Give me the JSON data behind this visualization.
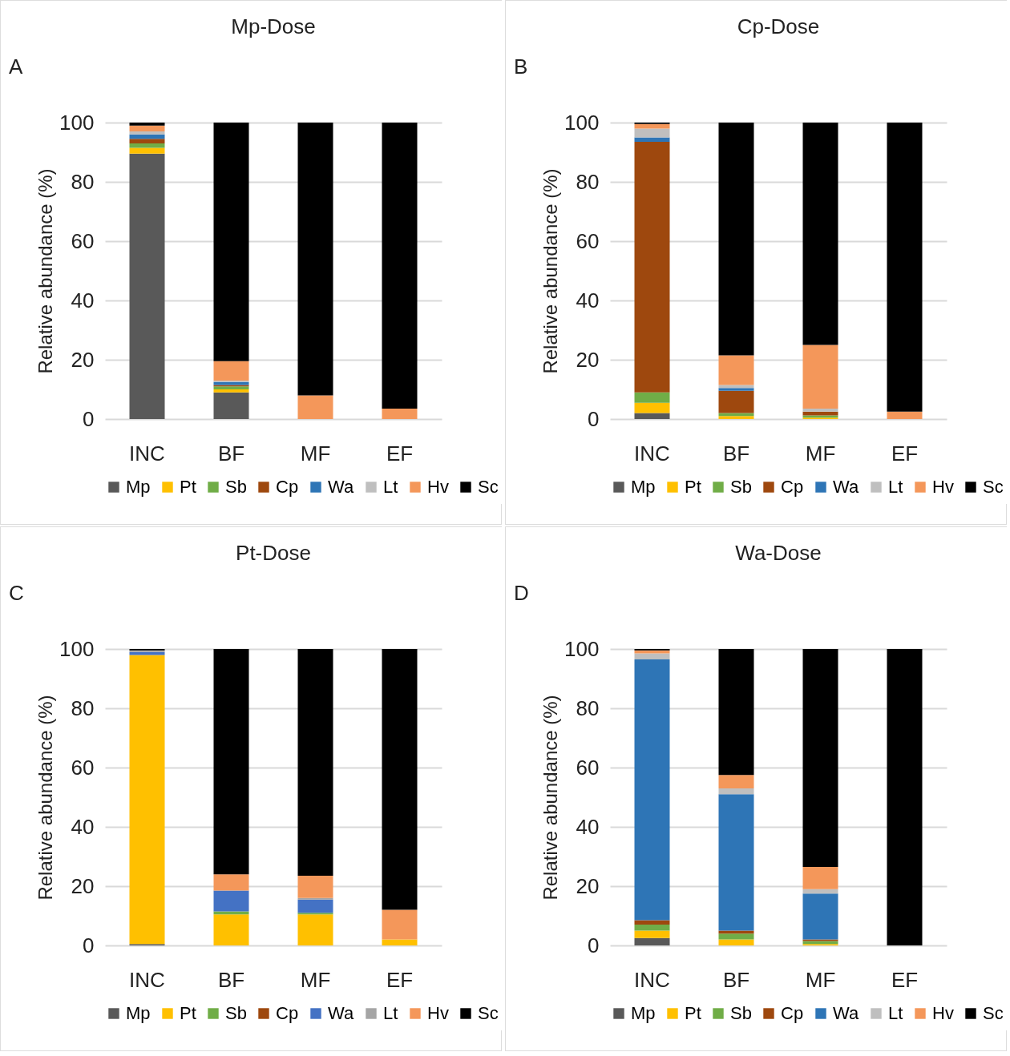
{
  "chart_data": [
    {
      "type": "bar",
      "title": "Mp-Dose",
      "annotations": [
        "A"
      ],
      "ylabel": "Relative abundance  (%)",
      "categories": [
        "INC",
        "BF",
        "MF",
        "EF"
      ],
      "stacked": true,
      "ylim": [
        0,
        100
      ],
      "yticks": [
        0,
        20,
        40,
        60,
        80,
        100
      ],
      "grid": "y",
      "legend": "bottom",
      "series": [
        {
          "name": "Mp",
          "color": "#595959",
          "values": [
            89.5,
            9,
            0,
            0
          ]
        },
        {
          "name": "Pt",
          "color": "#ffc000",
          "values": [
            2,
            1,
            0,
            0
          ]
        },
        {
          "name": "Sb",
          "color": "#70ad47",
          "values": [
            1.5,
            1,
            0,
            0
          ]
        },
        {
          "name": "Cp",
          "color": "#9e480e",
          "values": [
            1.5,
            0.5,
            0,
            0
          ]
        },
        {
          "name": "Wa",
          "color": "#2e75b6",
          "values": [
            1.5,
            1,
            0,
            0
          ]
        },
        {
          "name": "Lt",
          "color": "#bfbfbf",
          "values": [
            1,
            0.5,
            0,
            0
          ]
        },
        {
          "name": "Hv",
          "color": "#f4975a",
          "values": [
            2,
            6.5,
            8,
            3.5
          ]
        },
        {
          "name": "Sc",
          "color": "#000000",
          "values": [
            1,
            80.5,
            92,
            96.5
          ]
        }
      ]
    },
    {
      "type": "bar",
      "title": "Cp-Dose",
      "annotations": [
        "B"
      ],
      "ylabel": "Relative abundance  (%)",
      "categories": [
        "INC",
        "BF",
        "MF",
        "EF"
      ],
      "stacked": true,
      "ylim": [
        0,
        100
      ],
      "yticks": [
        0,
        20,
        40,
        60,
        80,
        100
      ],
      "grid": "y",
      "legend": "bottom",
      "series": [
        {
          "name": "Mp",
          "color": "#595959",
          "values": [
            2,
            0,
            0,
            0
          ]
        },
        {
          "name": "Pt",
          "color": "#ffc000",
          "values": [
            3.5,
            1,
            0.5,
            0
          ]
        },
        {
          "name": "Sb",
          "color": "#70ad47",
          "values": [
            3.5,
            1,
            0.7,
            0
          ]
        },
        {
          "name": "Cp",
          "color": "#9e480e",
          "values": [
            84.5,
            7.5,
            1.3,
            0
          ]
        },
        {
          "name": "Wa",
          "color": "#2e75b6",
          "values": [
            1.5,
            1,
            0,
            0
          ]
        },
        {
          "name": "Lt",
          "color": "#bfbfbf",
          "values": [
            3,
            1,
            1,
            0
          ]
        },
        {
          "name": "Hv",
          "color": "#f4975a",
          "values": [
            1.5,
            10,
            21.5,
            2.5
          ]
        },
        {
          "name": "Sc",
          "color": "#000000",
          "values": [
            0.5,
            78.5,
            75,
            97.5
          ]
        }
      ]
    },
    {
      "type": "bar",
      "title": "Pt-Dose",
      "annotations": [
        "C"
      ],
      "ylabel": "Relative abundance  (%)",
      "categories": [
        "INC",
        "BF",
        "MF",
        "EF"
      ],
      "stacked": true,
      "ylim": [
        0,
        100
      ],
      "yticks": [
        0,
        20,
        40,
        60,
        80,
        100
      ],
      "grid": "y",
      "legend": "bottom",
      "series": [
        {
          "name": "Mp",
          "color": "#595959",
          "values": [
            0.5,
            0,
            0,
            0
          ]
        },
        {
          "name": "Pt",
          "color": "#ffc000",
          "values": [
            97.5,
            10.5,
            10.5,
            2
          ]
        },
        {
          "name": "Sb",
          "color": "#70ad47",
          "values": [
            0,
            1,
            0.5,
            0
          ]
        },
        {
          "name": "Cp",
          "color": "#9e480e",
          "values": [
            0,
            0,
            0,
            0
          ]
        },
        {
          "name": "Wa",
          "color": "#4472c4",
          "values": [
            1,
            7,
            4.5,
            0
          ]
        },
        {
          "name": "Lt",
          "color": "#a5a5a5",
          "values": [
            0.5,
            0,
            0.5,
            0
          ]
        },
        {
          "name": "Hv",
          "color": "#f4975a",
          "values": [
            0,
            5.5,
            7.5,
            10
          ]
        },
        {
          "name": "Sc",
          "color": "#000000",
          "values": [
            0.5,
            76,
            76.5,
            88
          ]
        }
      ]
    },
    {
      "type": "bar",
      "title": "Wa-Dose",
      "annotations": [
        "D"
      ],
      "ylabel": "Relative abundance  (%)",
      "categories": [
        "INC",
        "BF",
        "MF",
        "EF"
      ],
      "stacked": true,
      "ylim": [
        0,
        100
      ],
      "yticks": [
        0,
        20,
        40,
        60,
        80,
        100
      ],
      "grid": "y",
      "legend": "bottom",
      "series": [
        {
          "name": "Mp",
          "color": "#595959",
          "values": [
            2.5,
            0,
            0,
            0
          ]
        },
        {
          "name": "Pt",
          "color": "#ffc000",
          "values": [
            2.5,
            2,
            0.5,
            0
          ]
        },
        {
          "name": "Sb",
          "color": "#70ad47",
          "values": [
            2,
            2,
            1,
            0
          ]
        },
        {
          "name": "Cp",
          "color": "#9e480e",
          "values": [
            1.5,
            1,
            0.5,
            0
          ]
        },
        {
          "name": "Wa",
          "color": "#2e75b6",
          "values": [
            88,
            46,
            15.5,
            0
          ]
        },
        {
          "name": "Lt",
          "color": "#bfbfbf",
          "values": [
            2,
            2,
            1.5,
            0
          ]
        },
        {
          "name": "Hv",
          "color": "#f4975a",
          "values": [
            1,
            4.5,
            7.5,
            0
          ]
        },
        {
          "name": "Sc",
          "color": "#000000",
          "values": [
            0.5,
            42.5,
            73.5,
            100
          ]
        }
      ]
    }
  ]
}
